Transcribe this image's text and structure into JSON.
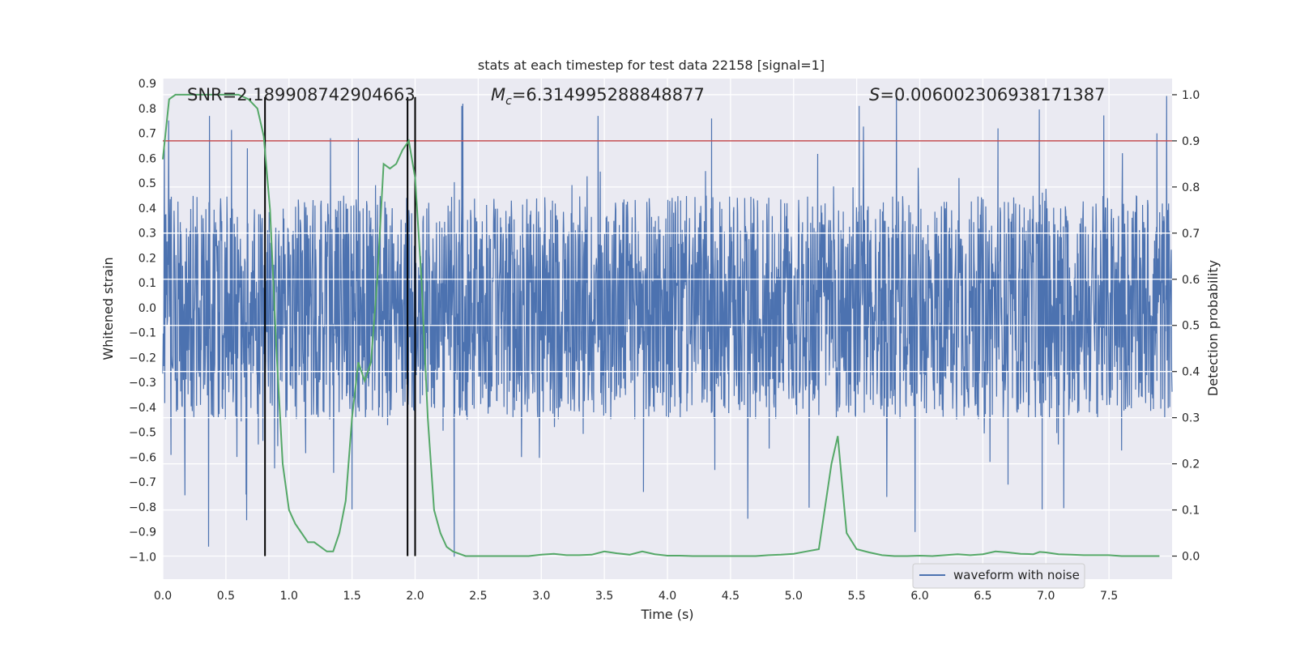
{
  "chart_data": {
    "type": "line",
    "title": "stats at each timestep for test data 22158 [signal=1]",
    "xlabel": "Time (s)",
    "ylabel": "Whitened strain",
    "y2label": "Detection probability",
    "xlim": [
      0,
      8.0
    ],
    "ylim": [
      -1.09,
      0.92
    ],
    "y2lim": [
      -0.05,
      1.035
    ],
    "x_ticks": [
      "0.0",
      "0.5",
      "1.0",
      "1.5",
      "2.0",
      "2.5",
      "3.0",
      "3.5",
      "4.0",
      "4.5",
      "5.0",
      "5.5",
      "6.0",
      "6.5",
      "7.0",
      "7.5"
    ],
    "y_ticks": [
      "0.9",
      "0.8",
      "0.7",
      "0.6",
      "0.5",
      "0.4",
      "0.3",
      "0.2",
      "0.1",
      "0.0",
      "-0.1",
      "-0.2",
      "-0.3",
      "-0.4",
      "-0.5",
      "-0.6",
      "-0.7",
      "-0.8",
      "-0.9",
      "-1.0"
    ],
    "y2_ticks": [
      "1.0",
      "0.9",
      "0.8",
      "0.7",
      "0.6",
      "0.5",
      "0.4",
      "0.3",
      "0.2",
      "0.1",
      "0.0"
    ],
    "grid": true,
    "legend_placement": "bottom-right",
    "annotations": {
      "snr": "SNR=2.189908742904663",
      "mc_symbol": "M",
      "mc_sub": "c",
      "mc_value": "=6.314995288848877",
      "s_symbol": "S",
      "s_value": "=0.006002306938171387"
    },
    "series": [
      {
        "name": "waveform with noise",
        "color": "#4c72b0",
        "kind": "dense noisy waveform",
        "amplitude_envelope": [
          -0.45,
          0.45
        ],
        "spike_peaks": [
          {
            "x": 0.37,
            "y": 0.77
          },
          {
            "x": 0.67,
            "y": 0.64
          },
          {
            "x": 1.55,
            "y": 0.68
          },
          {
            "x": 2.37,
            "y": 0.81
          },
          {
            "x": 3.45,
            "y": 0.77
          },
          {
            "x": 4.35,
            "y": 0.76
          },
          {
            "x": 5.52,
            "y": 0.81
          },
          {
            "x": 6.62,
            "y": 0.72
          },
          {
            "x": 7.88,
            "y": 0.7
          }
        ],
        "spike_troughs": [
          {
            "x": 0.66,
            "y": -0.75
          },
          {
            "x": 1.5,
            "y": -0.81
          },
          {
            "x": 2.31,
            "y": -1.0
          },
          {
            "x": 3.81,
            "y": -0.74
          },
          {
            "x": 6.7,
            "y": -0.71
          },
          {
            "x": 6.97,
            "y": -0.81
          }
        ]
      },
      {
        "name": "",
        "color": "#55a868",
        "axis": "right",
        "x": [
          0.0,
          0.05,
          0.1,
          0.15,
          0.2,
          0.3,
          0.4,
          0.5,
          0.6,
          0.68,
          0.75,
          0.8,
          0.85,
          0.9,
          0.95,
          1.0,
          1.05,
          1.1,
          1.15,
          1.2,
          1.3,
          1.35,
          1.4,
          1.45,
          1.5,
          1.55,
          1.6,
          1.65,
          1.7,
          1.75,
          1.8,
          1.85,
          1.9,
          1.95,
          2.0,
          2.05,
          2.1,
          2.15,
          2.2,
          2.25,
          2.3,
          2.4,
          2.5,
          2.6,
          2.7,
          2.8,
          2.9,
          3.0,
          3.1,
          3.2,
          3.3,
          3.4,
          3.5,
          3.6,
          3.7,
          3.8,
          3.9,
          4.0,
          4.1,
          4.2,
          4.3,
          4.4,
          4.5,
          4.6,
          4.7,
          4.8,
          4.9,
          5.0,
          5.1,
          5.2,
          5.3,
          5.35,
          5.42,
          5.5,
          5.6,
          5.7,
          5.8,
          5.9,
          6.0,
          6.1,
          6.2,
          6.3,
          6.4,
          6.5,
          6.6,
          6.7,
          6.8,
          6.9,
          6.95,
          7.0,
          7.1,
          7.2,
          7.3,
          7.4,
          7.5,
          7.6,
          7.7,
          7.8,
          7.9
        ],
        "y": [
          0.86,
          0.99,
          1.0,
          1.0,
          1.0,
          1.0,
          1.0,
          1.0,
          1.0,
          0.99,
          0.97,
          0.91,
          0.75,
          0.45,
          0.2,
          0.1,
          0.07,
          0.05,
          0.03,
          0.03,
          0.01,
          0.01,
          0.05,
          0.12,
          0.3,
          0.42,
          0.38,
          0.42,
          0.6,
          0.85,
          0.84,
          0.85,
          0.88,
          0.9,
          0.82,
          0.6,
          0.3,
          0.1,
          0.05,
          0.02,
          0.01,
          0.0,
          0.0,
          0.0,
          0.0,
          0.0,
          0.0,
          0.003,
          0.005,
          0.002,
          0.002,
          0.003,
          0.01,
          0.006,
          0.003,
          0.01,
          0.004,
          0.001,
          0.001,
          0.0,
          0.0,
          0.0,
          0.0,
          0.0,
          0.0,
          0.002,
          0.003,
          0.005,
          0.01,
          0.015,
          0.2,
          0.26,
          0.05,
          0.015,
          0.008,
          0.002,
          0.0,
          0.0,
          0.001,
          0.0,
          0.002,
          0.004,
          0.002,
          0.004,
          0.01,
          0.008,
          0.005,
          0.004,
          0.009,
          0.008,
          0.004,
          0.003,
          0.002,
          0.002,
          0.002,
          0.0,
          0.0,
          0.0,
          0.0
        ]
      }
    ],
    "hlines": [
      {
        "axis": "right",
        "y": 0.9,
        "color": "#c44e52"
      }
    ],
    "vlines": [
      {
        "x": 0.81
      },
      {
        "x": 1.94
      },
      {
        "x": 2.0
      }
    ]
  },
  "legend": {
    "label": "waveform with noise"
  }
}
